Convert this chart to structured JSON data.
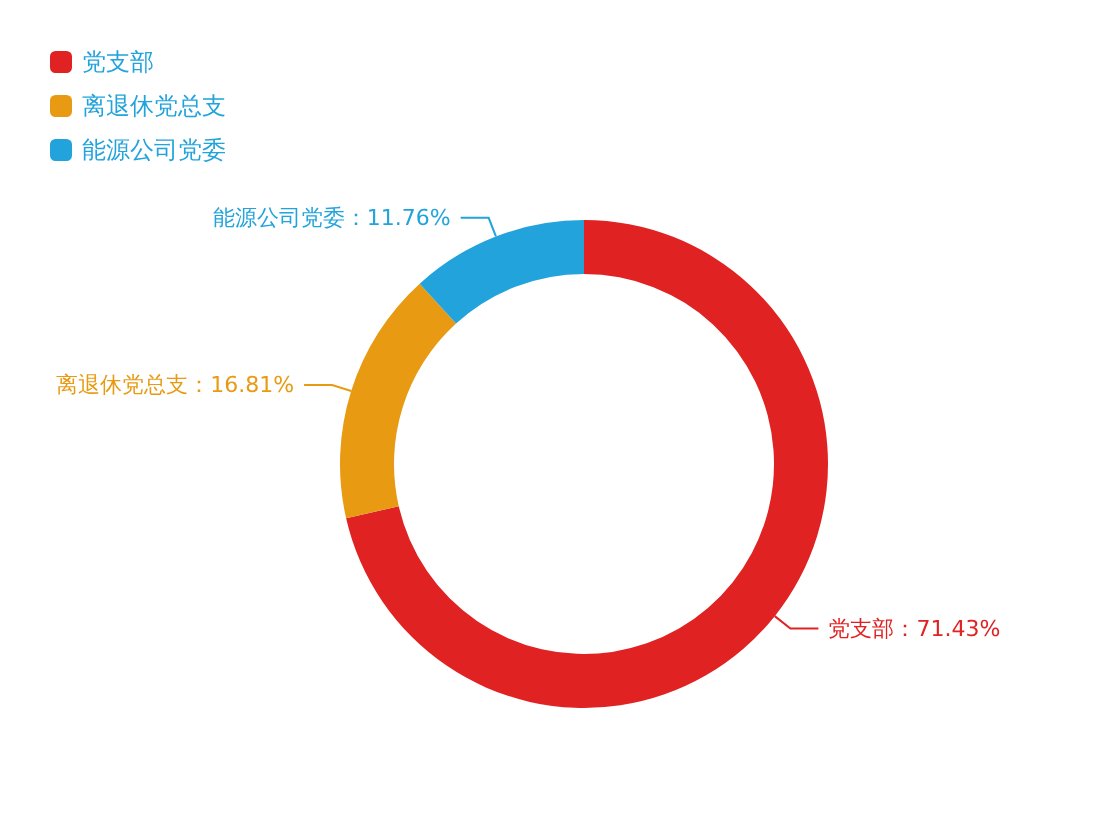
{
  "chart_data": {
    "type": "donut",
    "categories": [
      "党支部",
      "离退休党总支",
      "能源公司党委"
    ],
    "values": [
      71.43,
      16.81,
      11.76
    ],
    "colors": [
      "#e02222",
      "#e89a12",
      "#22a3dc"
    ],
    "value_labels": [
      "党支部：71.43%",
      "离退休党总支：16.81%",
      "能源公司党委：11.76%"
    ],
    "legend": "top left"
  }
}
